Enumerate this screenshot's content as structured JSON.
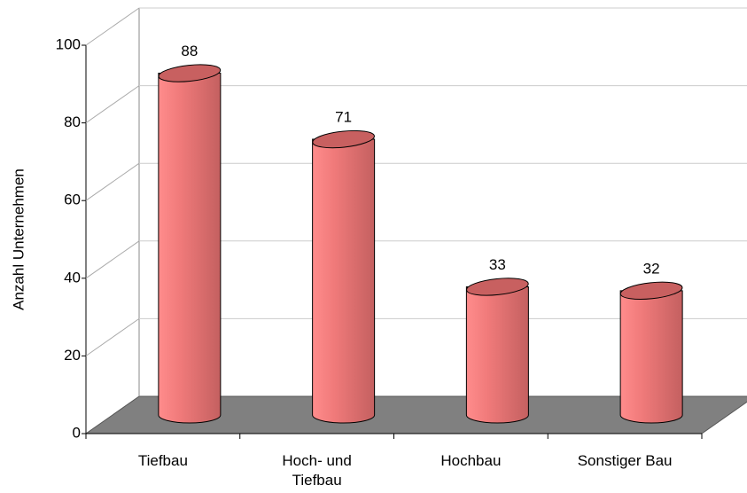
{
  "chart_data": {
    "type": "bar3d",
    "categories": [
      "Tiefbau",
      "Hoch- und Tiefbau",
      "Hochbau",
      "Sonstiger Bau"
    ],
    "values": [
      88,
      71,
      33,
      32
    ],
    "color": "#ff8080",
    "y_label": "Anzahl Unternehmen",
    "ylim": [
      0,
      100
    ],
    "yticks": [
      0,
      20,
      40,
      60,
      80,
      100
    ],
    "grid": true
  }
}
